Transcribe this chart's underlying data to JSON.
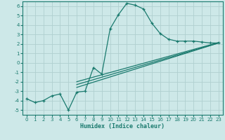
{
  "xlabel": "Humidex (Indice chaleur)",
  "bg_color": "#cde8e8",
  "grid_color": "#b0d0d0",
  "line_color": "#1a7a6e",
  "xlim": [
    -0.5,
    23.5
  ],
  "ylim": [
    -5.5,
    6.5
  ],
  "xticks": [
    0,
    1,
    2,
    3,
    4,
    5,
    6,
    7,
    8,
    9,
    10,
    11,
    12,
    13,
    14,
    15,
    16,
    17,
    18,
    19,
    20,
    21,
    22,
    23
  ],
  "yticks": [
    -5,
    -4,
    -3,
    -2,
    -1,
    0,
    1,
    2,
    3,
    4,
    5,
    6
  ],
  "curve1_x": [
    0,
    1,
    2,
    3,
    4,
    5,
    6,
    7,
    8,
    9,
    10,
    11,
    12,
    13,
    14,
    15,
    16,
    17,
    18,
    19,
    20,
    21,
    22,
    23
  ],
  "curve1_y": [
    -3.8,
    -4.2,
    -4.0,
    -3.5,
    -3.3,
    -5.0,
    -3.1,
    -3.0,
    -0.5,
    -1.2,
    3.6,
    5.1,
    6.3,
    6.1,
    5.7,
    4.2,
    3.1,
    2.5,
    2.3,
    2.3,
    2.3,
    2.2,
    2.1,
    2.1
  ],
  "line2_x": [
    6,
    23
  ],
  "line2_y": [
    -2.6,
    2.1
  ],
  "line3_x": [
    6,
    23
  ],
  "line3_y": [
    -2.3,
    2.1
  ],
  "line4_x": [
    6,
    23
  ],
  "line4_y": [
    -2.0,
    2.15
  ]
}
